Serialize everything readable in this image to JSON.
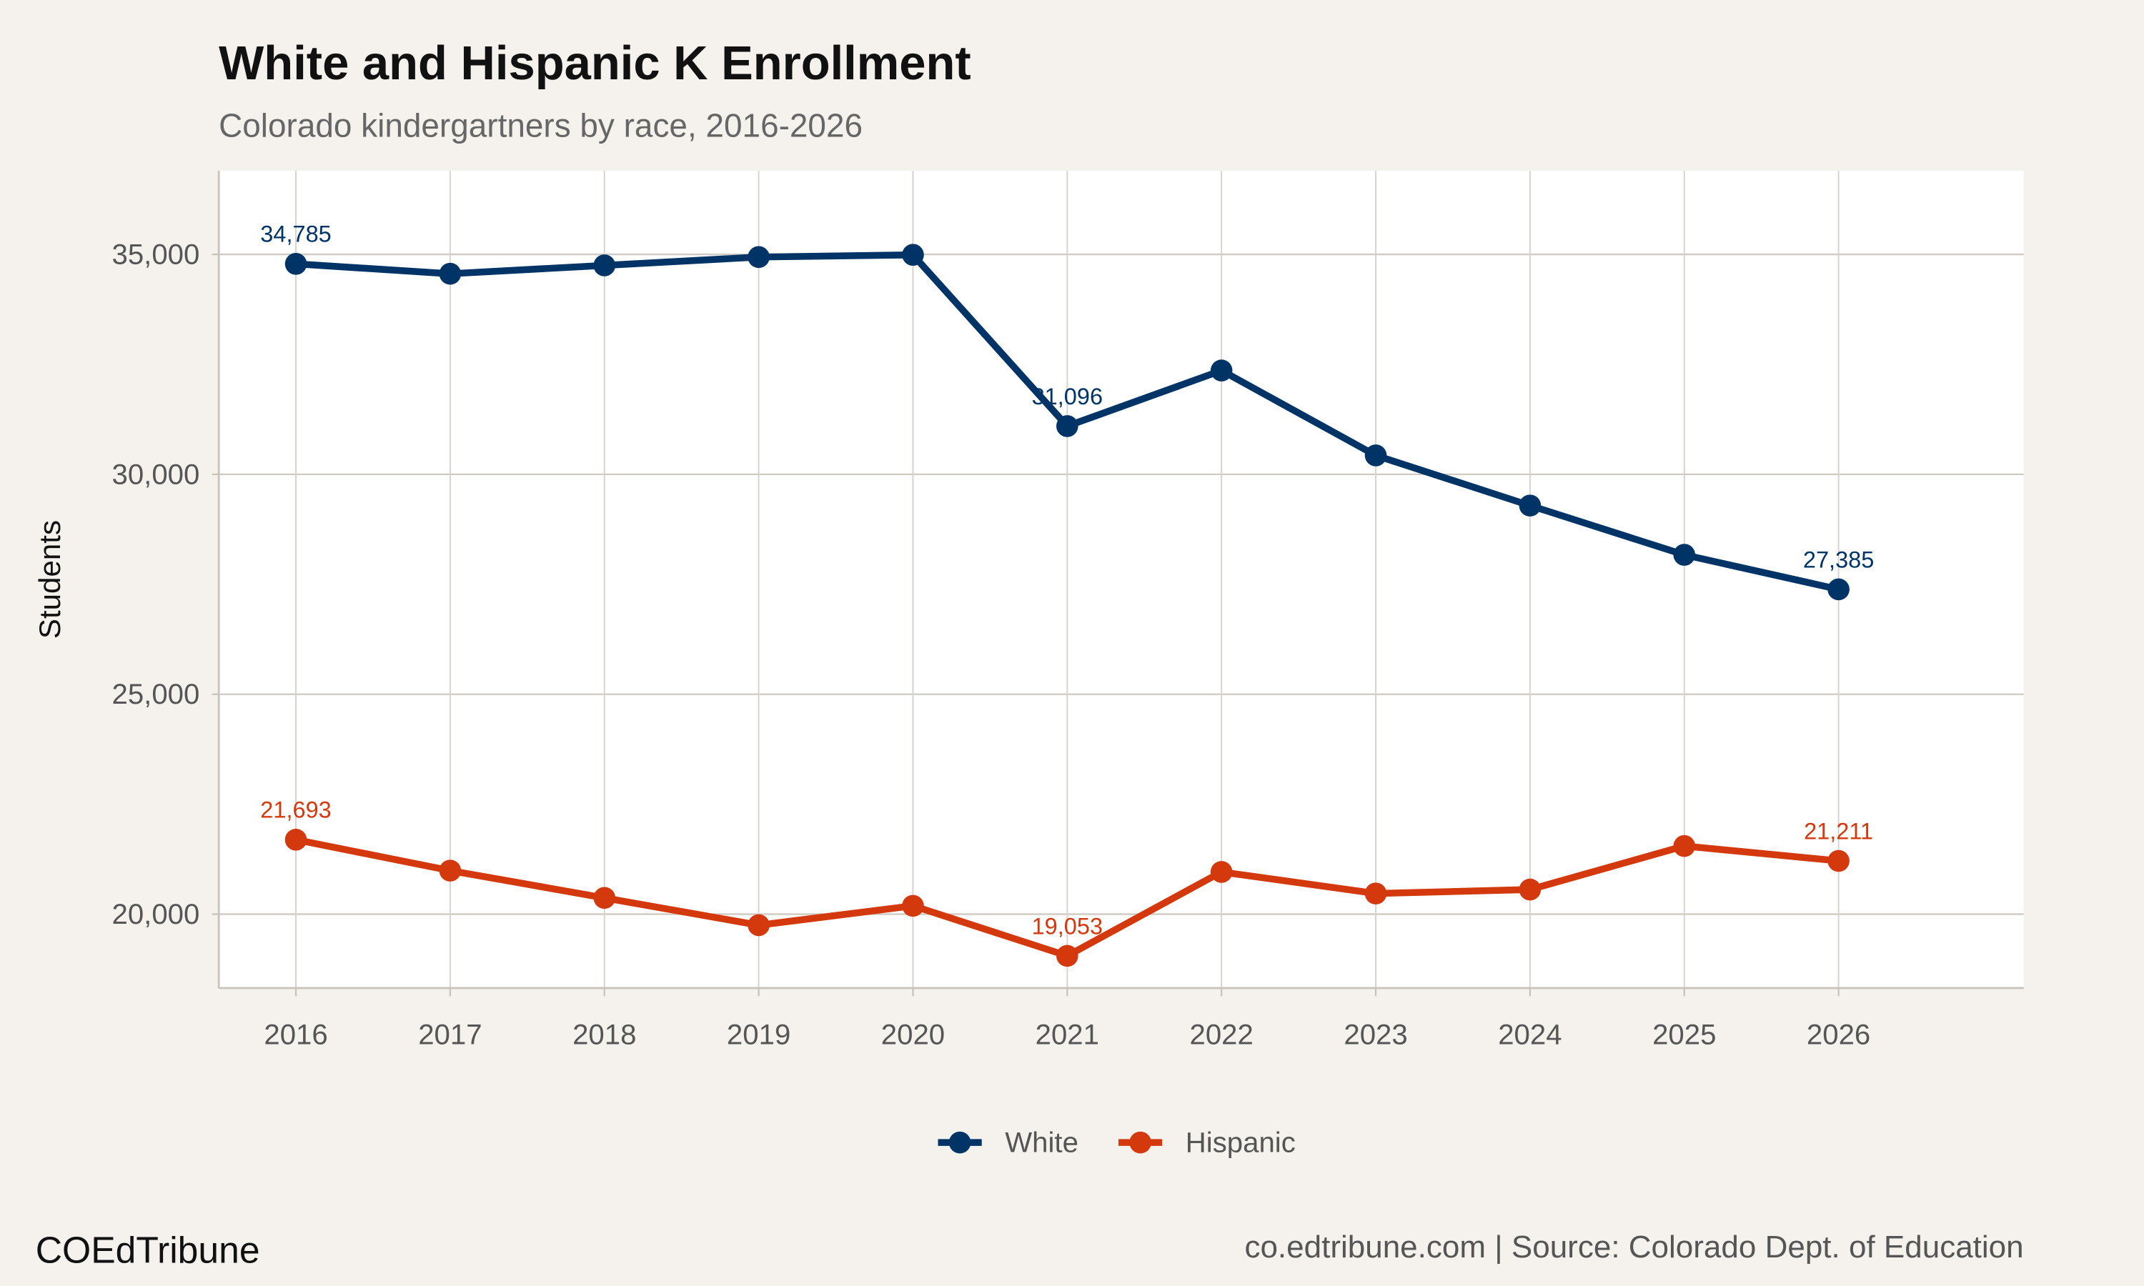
{
  "chart_data": {
    "type": "line",
    "title": "White and Hispanic K Enrollment",
    "subtitle": "Colorado kindergartners by race, 2016-2026",
    "xlabel": "",
    "ylabel": "Students",
    "x": [
      2016,
      2017,
      2018,
      2019,
      2020,
      2021,
      2022,
      2023,
      2024,
      2025,
      2026
    ],
    "x_tick_labels": [
      "2016",
      "2017",
      "2018",
      "2019",
      "2020",
      "2021",
      "2022",
      "2023",
      "2024",
      "2025",
      "2026"
    ],
    "y_ticks": [
      20000,
      25000,
      30000,
      35000
    ],
    "y_tick_labels": [
      "20,000",
      "25,000",
      "30,000",
      "35,000"
    ],
    "xlim": [
      2015.5,
      2027.2
    ],
    "ylim": [
      18320,
      36900
    ],
    "grid": true,
    "legend_position": "bottom",
    "series": [
      {
        "name": "White",
        "color": "#003366",
        "values": [
          34785,
          34560,
          34750,
          34940,
          34990,
          31096,
          32360,
          30430,
          29290,
          28170,
          27385
        ],
        "labels": [
          {
            "x": 2016,
            "text": "34,785"
          },
          {
            "x": 2021,
            "text": "31,096"
          },
          {
            "x": 2026,
            "text": "27,385"
          }
        ]
      },
      {
        "name": "Hispanic",
        "color": "#d4380d",
        "values": [
          21693,
          20990,
          20370,
          19750,
          20190,
          19053,
          20960,
          20470,
          20560,
          21550,
          21211
        ],
        "labels": [
          {
            "x": 2016,
            "text": "21,693"
          },
          {
            "x": 2021,
            "text": "19,053"
          },
          {
            "x": 2026,
            "text": "21,211"
          }
        ]
      }
    ]
  },
  "footer": {
    "brand": "COEdTribune",
    "caption": "co.edtribune.com | Source: Colorado Dept. of Education"
  }
}
